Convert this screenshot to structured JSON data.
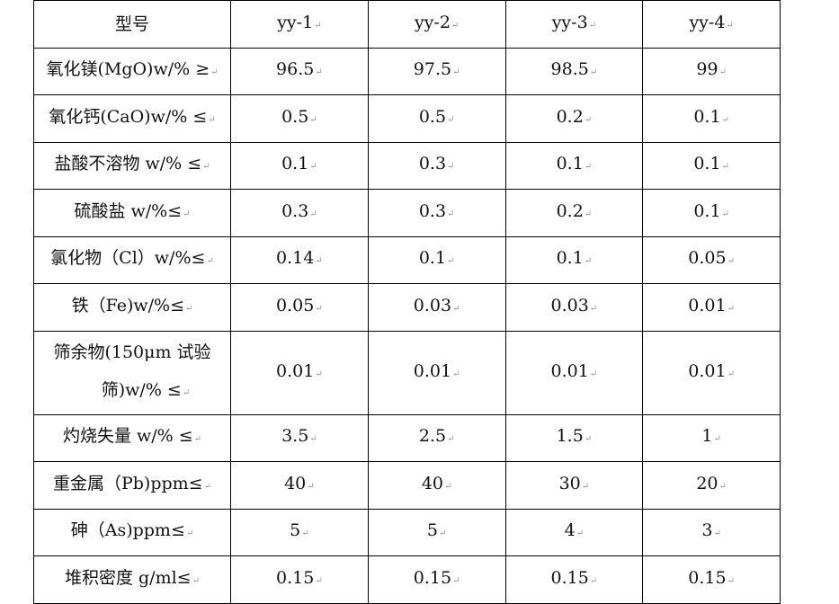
{
  "table": {
    "header": [
      "型号",
      "yy-1",
      "yy-2",
      "yy-3",
      "yy-4"
    ],
    "rows": [
      {
        "label": "氧化镁(MgO)w/% ≥",
        "values": [
          "96.5",
          "97.5",
          "98.5",
          "99"
        ]
      },
      {
        "label": "氧化钙(CaO)w/% ≤",
        "values": [
          "0.5",
          "0.5",
          "0.2",
          "0.1"
        ]
      },
      {
        "label": "盐酸不溶物 w/% ≤",
        "values": [
          "0.1",
          "0.3",
          "0.1",
          "0.1"
        ]
      },
      {
        "label": "硫酸盐 w/%≤",
        "values": [
          "0.3",
          "0.3",
          "0.2",
          "0.1"
        ]
      },
      {
        "label": "氯化物（Cl）w/%≤",
        "values": [
          "0.14",
          "0.1",
          "0.1",
          "0.05"
        ]
      },
      {
        "label": "铁（Fe)w/%≤",
        "values": [
          "0.05",
          "0.03",
          "0.03",
          "0.01"
        ]
      },
      {
        "label": "筛余物(150μm 试验",
        "label_line2": "筛)w/% ≤",
        "values": [
          "0.01",
          "0.01",
          "0.01",
          "0.01"
        ]
      },
      {
        "label": "灼烧失量 w/% ≤",
        "values": [
          "3.5",
          "2.5",
          "1.5",
          "1"
        ]
      },
      {
        "label": "重金属（Pb)ppm≤",
        "values": [
          "40",
          "40",
          "30",
          "20"
        ]
      },
      {
        "label": "砷（As)ppm≤",
        "values": [
          "5",
          "5",
          "4",
          "3"
        ]
      },
      {
        "label": "堆积密度 g/ml≤",
        "values": [
          "0.15",
          "0.15",
          "0.15",
          "0.15"
        ]
      }
    ]
  }
}
